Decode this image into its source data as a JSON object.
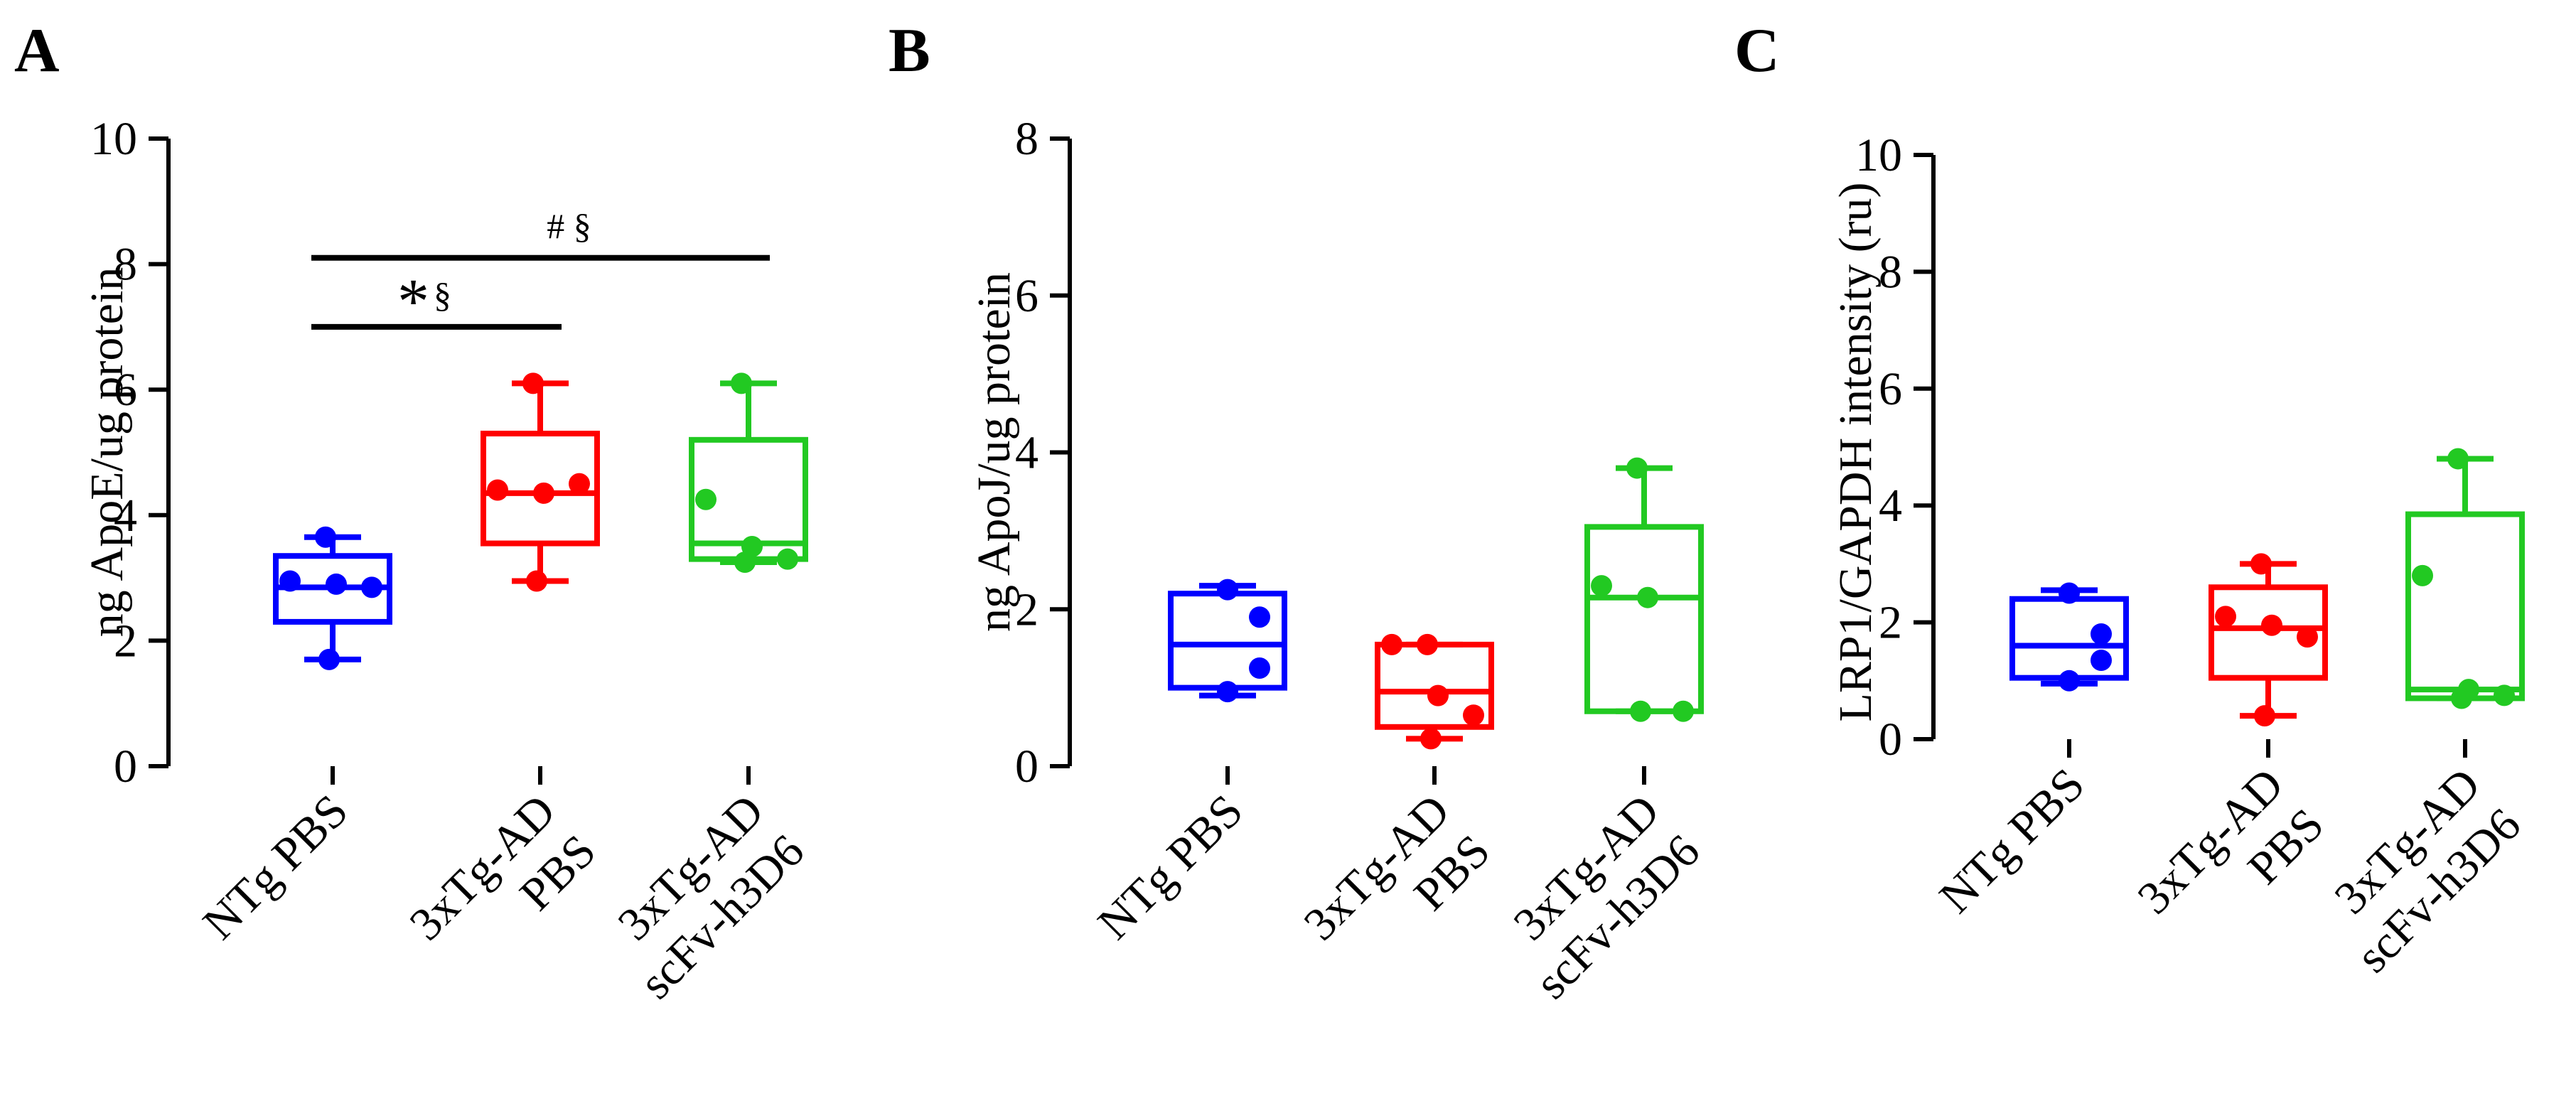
{
  "chart_data": [
    {
      "panel": "A",
      "type": "box",
      "ylabel": "ng ApoE/ug protein",
      "ylim": [
        0,
        10
      ],
      "yticks": [
        "0",
        "2",
        "4",
        "6",
        "8",
        "10"
      ],
      "categories": [
        {
          "lines": [
            "NTg PBS"
          ],
          "color": "#0000ff",
          "q1": 2.3,
          "median": 2.85,
          "q3": 3.35,
          "whisker_low": 1.7,
          "whisker_high": 3.65,
          "points": [
            3.65,
            2.95,
            2.9,
            2.85,
            1.7
          ]
        },
        {
          "lines": [
            "3xTg-AD",
            "PBS"
          ],
          "color": "#ff0000",
          "q1": 3.55,
          "median": 4.35,
          "q3": 5.3,
          "whisker_low": 2.95,
          "whisker_high": 6.1,
          "points": [
            6.1,
            4.4,
            4.35,
            4.5,
            2.95
          ]
        },
        {
          "lines": [
            "3xTg-AD",
            "scFv-h3D6"
          ],
          "color": "#22c922",
          "q1": 3.3,
          "median": 3.55,
          "q3": 5.2,
          "whisker_low": 3.25,
          "whisker_high": 6.1,
          "points": [
            6.1,
            4.25,
            3.5,
            3.3,
            3.25
          ]
        }
      ],
      "significance": [
        {
          "from": 0,
          "to": 1,
          "y": 7.0,
          "star": "*",
          "label": "§"
        },
        {
          "from": 0,
          "to": 2,
          "y": 8.1,
          "star": "",
          "label": "# §"
        }
      ]
    },
    {
      "panel": "B",
      "type": "box",
      "ylabel": "ng ApoJ/ug protein",
      "ylim": [
        0,
        8
      ],
      "yticks": [
        "0",
        "2",
        "4",
        "6",
        "8"
      ],
      "categories": [
        {
          "lines": [
            "NTg PBS"
          ],
          "color": "#0000ff",
          "q1": 1.0,
          "median": 1.55,
          "q3": 2.2,
          "whisker_low": 0.9,
          "whisker_high": 2.3,
          "points": [
            2.25,
            1.9,
            1.25,
            0.95
          ]
        },
        {
          "lines": [
            "3xTg-AD",
            "PBS"
          ],
          "color": "#ff0000",
          "q1": 0.5,
          "median": 0.95,
          "q3": 1.55,
          "whisker_low": 0.35,
          "whisker_high": 1.55,
          "points": [
            1.55,
            1.55,
            0.9,
            0.65,
            0.35
          ]
        },
        {
          "lines": [
            "3xTg-AD",
            "scFv-h3D6"
          ],
          "color": "#22c922",
          "q1": 0.7,
          "median": 2.15,
          "q3": 3.05,
          "whisker_low": 0.7,
          "whisker_high": 3.8,
          "points": [
            3.8,
            2.3,
            2.15,
            0.7,
            0.7
          ]
        }
      ],
      "significance": []
    },
    {
      "panel": "C",
      "type": "box",
      "ylabel": "LRP1/GAPDH intensity (ru)",
      "ylim": [
        0,
        10
      ],
      "yticks": [
        "0",
        "2",
        "4",
        "6",
        "8",
        "10"
      ],
      "categories": [
        {
          "lines": [
            "NTg PBS"
          ],
          "color": "#0000ff",
          "q1": 1.05,
          "median": 1.6,
          "q3": 2.4,
          "whisker_low": 0.95,
          "whisker_high": 2.55,
          "points": [
            2.5,
            1.8,
            1.35,
            1.0
          ]
        },
        {
          "lines": [
            "3xTg-AD",
            "PBS"
          ],
          "color": "#ff0000",
          "q1": 1.05,
          "median": 1.9,
          "q3": 2.6,
          "whisker_low": 0.4,
          "whisker_high": 3.0,
          "points": [
            3.0,
            2.1,
            1.95,
            1.75,
            0.4
          ]
        },
        {
          "lines": [
            "3xTg-AD",
            "scFv-h3D6"
          ],
          "color": "#22c922",
          "q1": 0.7,
          "median": 0.85,
          "q3": 3.85,
          "whisker_low": 0.7,
          "whisker_high": 4.8,
          "points": [
            4.8,
            2.8,
            0.85,
            0.75,
            0.7
          ]
        }
      ],
      "significance": []
    }
  ]
}
